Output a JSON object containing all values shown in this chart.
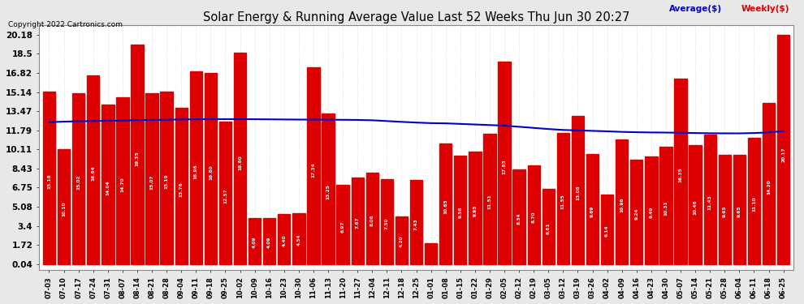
{
  "title": "Solar Energy & Running Average Value Last 52 Weeks Thu Jun 30 20:27",
  "copyright": "Copyright 2022 Cartronics.com",
  "bar_color": "#dd0000",
  "avg_line_color": "#0000cc",
  "weekly_color": "#dd0000",
  "background_color": "#e8e8e8",
  "plot_bg_color": "#ffffff",
  "grid_color": "#aaaaaa",
  "yticks": [
    0.04,
    1.72,
    3.4,
    5.08,
    6.75,
    8.43,
    10.11,
    11.79,
    13.47,
    15.14,
    16.82,
    18.5,
    20.18
  ],
  "categories": [
    "07-03",
    "07-10",
    "07-17",
    "07-24",
    "07-31",
    "08-07",
    "08-14",
    "08-21",
    "08-28",
    "09-04",
    "09-11",
    "09-18",
    "09-25",
    "10-02",
    "10-09",
    "10-16",
    "10-23",
    "10-30",
    "11-06",
    "11-13",
    "11-20",
    "11-27",
    "12-04",
    "12-11",
    "12-18",
    "12-25",
    "01-01",
    "01-08",
    "01-15",
    "01-22",
    "01-29",
    "02-05",
    "02-12",
    "02-19",
    "03-05",
    "03-12",
    "03-19",
    "03-26",
    "04-02",
    "04-09",
    "04-16",
    "04-23",
    "04-30",
    "05-07",
    "05-14",
    "05-21",
    "05-28",
    "06-04",
    "06-11",
    "06-18",
    "06-25"
  ],
  "values": [
    15.18,
    10.1,
    15.02,
    16.64,
    14.04,
    14.7,
    19.35,
    15.07,
    15.19,
    13.76,
    16.96,
    16.8,
    12.57,
    18.6,
    4.09,
    4.09,
    4.4,
    4.54,
    17.34,
    13.25,
    6.97,
    7.67,
    8.06,
    7.5,
    4.2,
    7.43,
    1.87,
    10.65,
    9.58,
    9.93,
    11.51,
    17.83,
    8.34,
    8.7,
    6.61,
    11.55,
    13.08,
    9.69,
    6.14,
    10.96,
    9.24,
    9.49,
    10.31,
    16.35,
    10.46,
    11.43,
    9.65,
    9.65,
    11.1,
    14.2,
    20.17
  ],
  "avg_values": [
    12.5,
    12.55,
    12.58,
    12.6,
    12.62,
    12.64,
    12.68,
    12.7,
    12.72,
    12.74,
    12.76,
    12.77,
    12.77,
    12.77,
    12.76,
    12.75,
    12.74,
    12.73,
    12.73,
    12.72,
    12.71,
    12.7,
    12.67,
    12.6,
    12.53,
    12.47,
    12.42,
    12.4,
    12.35,
    12.3,
    12.25,
    12.2,
    12.1,
    12.0,
    11.9,
    11.82,
    11.78,
    11.74,
    11.7,
    11.65,
    11.62,
    11.6,
    11.59,
    11.57,
    11.55,
    11.53,
    11.52,
    11.52,
    11.55,
    11.6,
    11.72
  ]
}
